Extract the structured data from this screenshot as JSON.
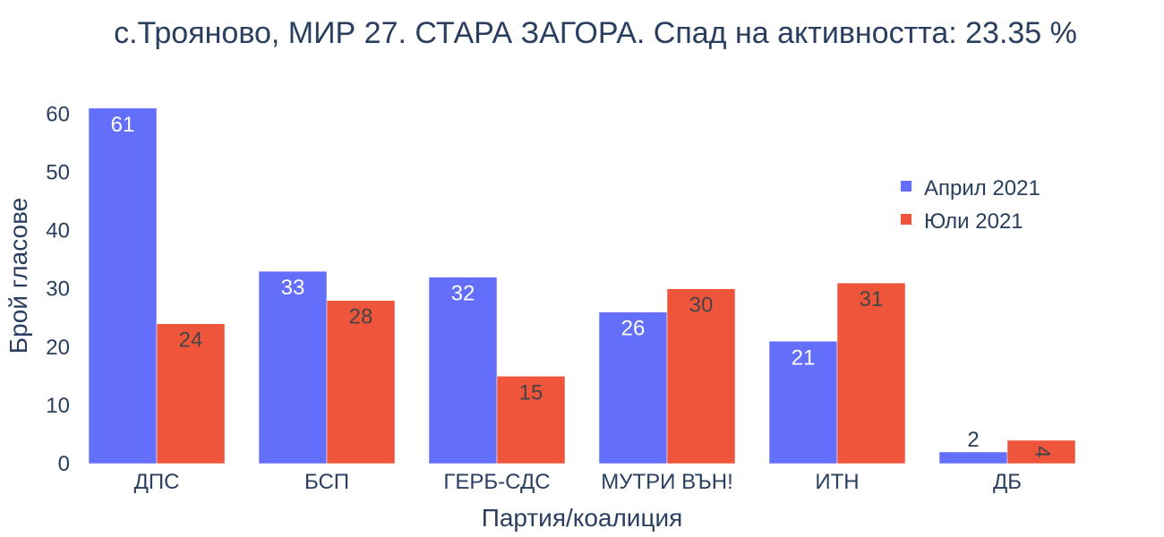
{
  "chart_data": {
    "type": "bar",
    "title": "с.Трояново, МИР 27. СТАРА ЗАГОРА. Спад на активността: 23.35 %",
    "xlabel": "Партия/коалиция",
    "ylabel": "Брой гласове",
    "categories": [
      "ДПС",
      "БСП",
      "ГЕРБ-СДС",
      "МУТРИ ВЪН!",
      "ИТН",
      "ДБ"
    ],
    "series": [
      {
        "name": "Април 2021",
        "color": "#636efa",
        "values": [
          61,
          33,
          32,
          26,
          21,
          2
        ]
      },
      {
        "name": "Юли 2021",
        "color": "#ef553b",
        "values": [
          24,
          28,
          15,
          30,
          31,
          4
        ]
      }
    ],
    "ylim": [
      0,
      64.2
    ],
    "yticks": [
      0,
      10,
      20,
      30,
      40,
      50,
      60
    ],
    "grid": false,
    "legend": "top-right",
    "label_colors": {
      "inside": "#ffffff",
      "outside": "#2a3f5f",
      "dark": "#444444"
    }
  }
}
